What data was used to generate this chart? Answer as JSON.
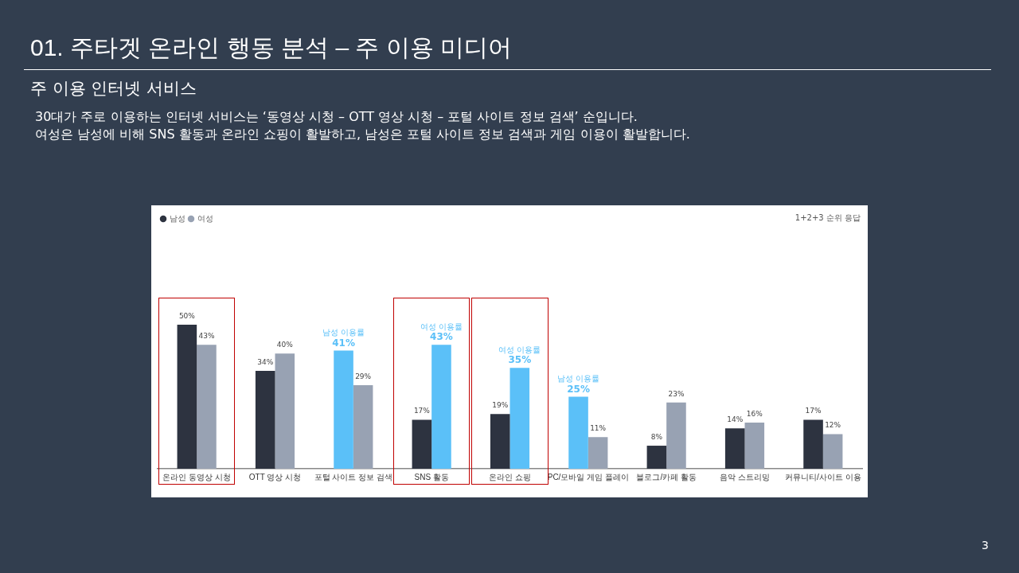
{
  "chart_data": {
    "type": "bar",
    "title": "01. 주타겟 온라인 행동 분석 – 주 이용 미디어",
    "subtitle": "주 이용 인터넷 서비스",
    "categories": [
      "온라인 동영상 시청",
      "OTT 영상 시청",
      "포털 사이트 정보 검색",
      "SNS 활동",
      "온라인 쇼핑",
      "PC/모바일 게임 플레이",
      "블로그/카페 활동",
      "음악 스트리밍",
      "커뮤니티/사이트 이용"
    ],
    "series": [
      {
        "name": "남성",
        "color": "#2d3340",
        "colors": [
          "#2d3340",
          "#2d3340",
          "#5bc0f8",
          "#2d3340",
          "#2d3340",
          "#5bc0f8",
          "#2d3340",
          "#2d3340",
          "#2d3340"
        ],
        "values": [
          50,
          34,
          41,
          17,
          19,
          25,
          8,
          14,
          17
        ],
        "value_labels": [
          "50%",
          "34%",
          "41%",
          "17%",
          "19%",
          "25%",
          "8%",
          "14%",
          "17%"
        ]
      },
      {
        "name": "여성",
        "color": "#98a2b3",
        "colors": [
          "#98a2b3",
          "#98a2b3",
          "#98a2b3",
          "#5bc0f8",
          "#5bc0f8",
          "#98a2b3",
          "#98a2b3",
          "#98a2b3",
          "#98a2b3"
        ],
        "values": [
          43,
          40,
          29,
          43,
          35,
          11,
          23,
          16,
          12
        ],
        "value_labels": [
          "43%",
          "40%",
          "29%",
          "43%",
          "35%",
          "11%",
          "23%",
          "16%",
          "12%"
        ]
      }
    ],
    "annotations": [
      "30대가 주로 이용하는 인터넷 서비스는 ‘동영상 시청 – OTT 영상 시청 – 포털 사이트 정보 검색’ 순입니다.",
      "여성은 남성에 비해 SNS 활동과 온라인 쇼핑이 활발하고, 남성은 포털 사이트 정보 검색과 게임 이용이 활발합니다.",
      "1+2+3 순위 응답",
      "3",
      {
        "text": "남성 이용률",
        "x": "포털 사이트 정보 검색",
        "y": 41
      },
      {
        "text": "여성 이용률",
        "x": "SNS 활동",
        "y": 43
      },
      {
        "text": "여성 이용률",
        "x": "온라인 쇼핑",
        "y": 35
      },
      {
        "text": "남성 이용률",
        "x": "PC/모바일 게임 플레이",
        "y": 25
      }
    ],
    "legend": "top left",
    "grid": false,
    "tick_labels": "x"
  }
}
